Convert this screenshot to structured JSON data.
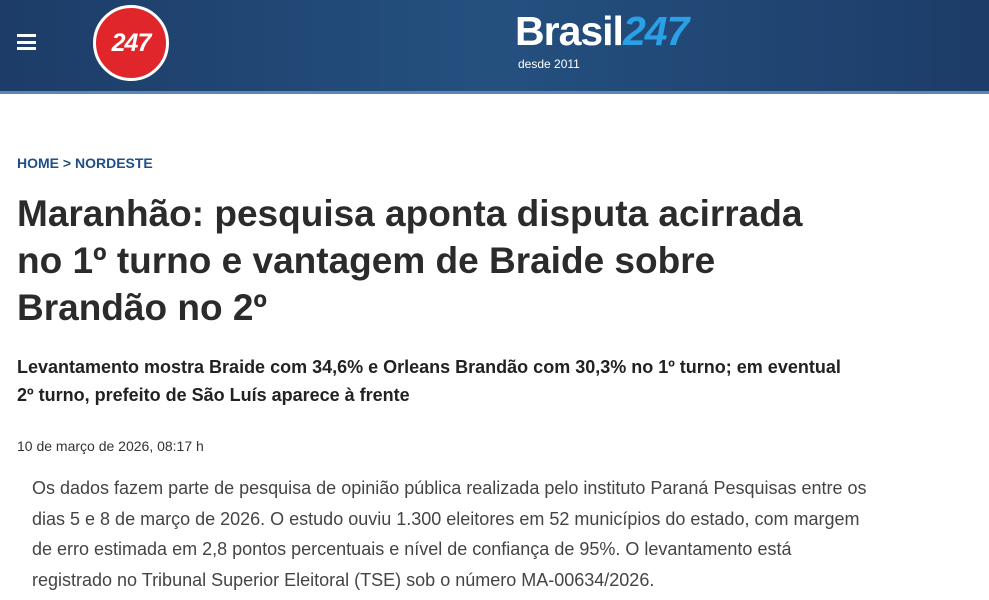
{
  "header": {
    "logo_badge": "247",
    "brand": "Brasil",
    "brand_number": "247",
    "tagline": "desde 2011"
  },
  "breadcrumb": {
    "home": "HOME",
    "separator": ">",
    "section": "NORDESTE"
  },
  "article": {
    "title": "Maranhão: pesquisa aponta disputa acirrada no 1º turno e vantagem de Braide sobre Brandão no 2º",
    "subtitle": "Levantamento mostra Braide com 34,6% e Orleans Brandão com 30,3% no 1º turno; em eventual 2º turno, prefeito de São Luís aparece à frente",
    "date": "10 de março de 2026, 08:17 h",
    "body": "Os dados fazem parte de pesquisa de opinião pública realizada pelo instituto Paraná Pesquisas entre os dias 5 e 8 de março de 2026. O estudo ouviu 1.300 eleitores em 52 municípios do estado, com margem de erro estimada em 2,8 pontos percentuais e nível de confiança de 95%. O levantamento está registrado no Tribunal Superior Eleitoral (TSE) sob o número MA-00634/2026."
  }
}
